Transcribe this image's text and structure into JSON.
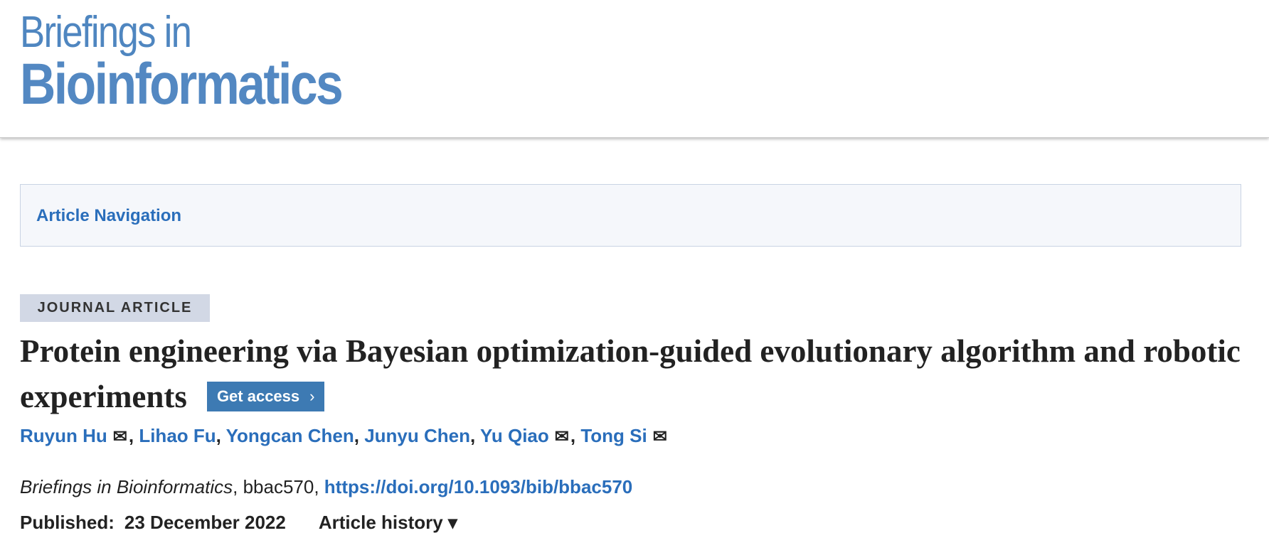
{
  "header": {
    "logo_line1": "Briefings in",
    "logo_line2": "Bioinformatics"
  },
  "nav": {
    "label": "Article Navigation"
  },
  "article": {
    "type_badge": "JOURNAL ARTICLE",
    "title": "Protein engineering via Bayesian optimization-guided evolutionary algorithm and robotic experiments",
    "get_access": "Get access",
    "get_access_icon": "›",
    "authors": [
      {
        "name": "Ruyun Hu",
        "email_icon": true
      },
      {
        "name": "Lihao Fu",
        "email_icon": false
      },
      {
        "name": "Yongcan Chen",
        "email_icon": false
      },
      {
        "name": "Junyu Chen",
        "email_icon": false
      },
      {
        "name": "Yu Qiao",
        "email_icon": true
      },
      {
        "name": "Tong Si",
        "email_icon": true
      }
    ],
    "mail_glyph": "✉",
    "journal": "Briefings in Bioinformatics",
    "article_id": "bbac570",
    "doi": "https://doi.org/10.1093/bib/bbac570",
    "published_label": "Published:",
    "published_date": "23 December 2022",
    "article_history": "Article history ▾"
  },
  "colors": {
    "brand": "#4f86c0",
    "link": "#2a6ebb",
    "button": "#3d7ab3",
    "badge_bg": "#d2d8e5"
  }
}
